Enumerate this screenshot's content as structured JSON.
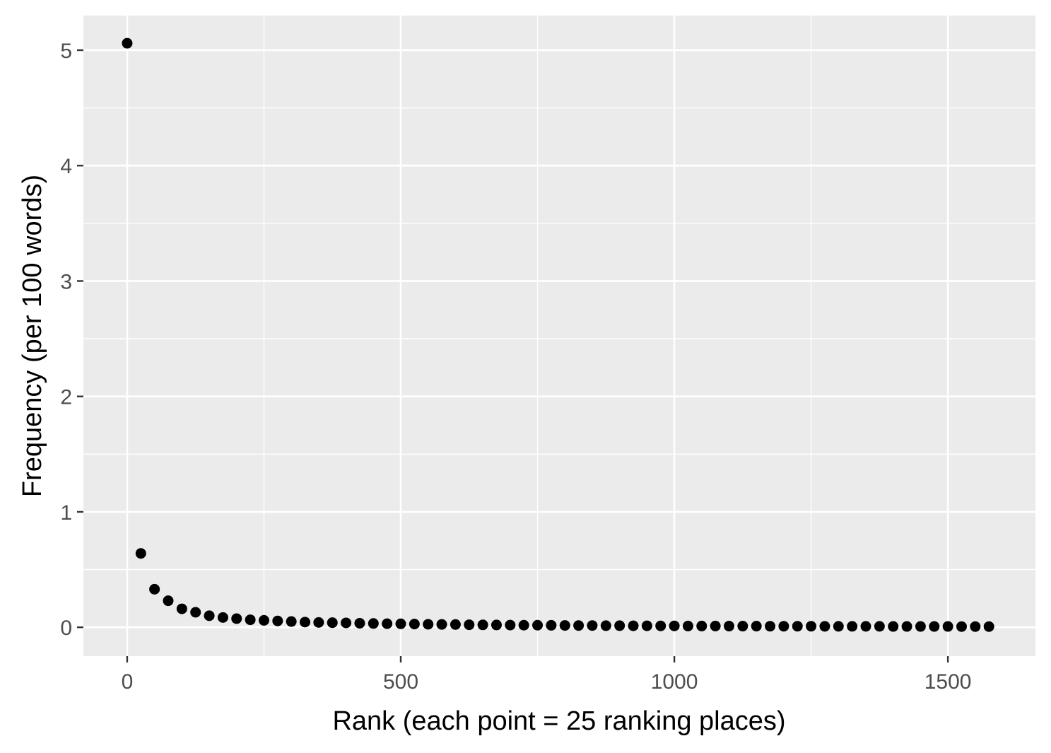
{
  "chart_data": {
    "type": "scatter",
    "title": "",
    "xlabel": "Rank (each point = 25 ranking places)",
    "ylabel": "Frequency (per 100 words)",
    "xlim": [
      -80,
      1660
    ],
    "ylim": [
      -0.25,
      5.3
    ],
    "x_ticks": [
      0,
      500,
      1000,
      1500
    ],
    "x_tick_labels": [
      "0",
      "500",
      "1000",
      "1500"
    ],
    "y_ticks": [
      0,
      1,
      2,
      3,
      4,
      5
    ],
    "y_tick_labels": [
      "0",
      "1",
      "2",
      "3",
      "4",
      "5"
    ],
    "grid": true,
    "colors": {
      "panel": "#ebebeb",
      "grid": "#ffffff",
      "point": "#000000",
      "tick_text": "#4d4d4d"
    },
    "series": [
      {
        "x": [
          0,
          25,
          50,
          75,
          100,
          125,
          150,
          175,
          200,
          225,
          250,
          275,
          300,
          325,
          350,
          375,
          400,
          425,
          450,
          475,
          500,
          525,
          550,
          575,
          600,
          625,
          650,
          675,
          700,
          725,
          750,
          775,
          800,
          825,
          850,
          875,
          900,
          925,
          950,
          975,
          1000,
          1025,
          1050,
          1075,
          1100,
          1125,
          1150,
          1175,
          1200,
          1225,
          1250,
          1275,
          1300,
          1325,
          1350,
          1375,
          1400,
          1425,
          1450,
          1475,
          1500,
          1525,
          1550,
          1575
        ],
        "y": [
          5.06,
          0.64,
          0.33,
          0.23,
          0.16,
          0.13,
          0.1,
          0.085,
          0.075,
          0.065,
          0.06,
          0.055,
          0.05,
          0.045,
          0.042,
          0.04,
          0.038,
          0.035,
          0.033,
          0.031,
          0.03,
          0.028,
          0.026,
          0.025,
          0.024,
          0.022,
          0.021,
          0.02,
          0.019,
          0.018,
          0.018,
          0.017,
          0.016,
          0.015,
          0.015,
          0.014,
          0.014,
          0.013,
          0.013,
          0.012,
          0.012,
          0.011,
          0.011,
          0.011,
          0.01,
          0.01,
          0.01,
          0.009,
          0.009,
          0.009,
          0.009,
          0.008,
          0.008,
          0.008,
          0.008,
          0.008,
          0.007,
          0.007,
          0.007,
          0.007,
          0.007,
          0.006,
          0.006,
          0.006
        ]
      }
    ]
  }
}
